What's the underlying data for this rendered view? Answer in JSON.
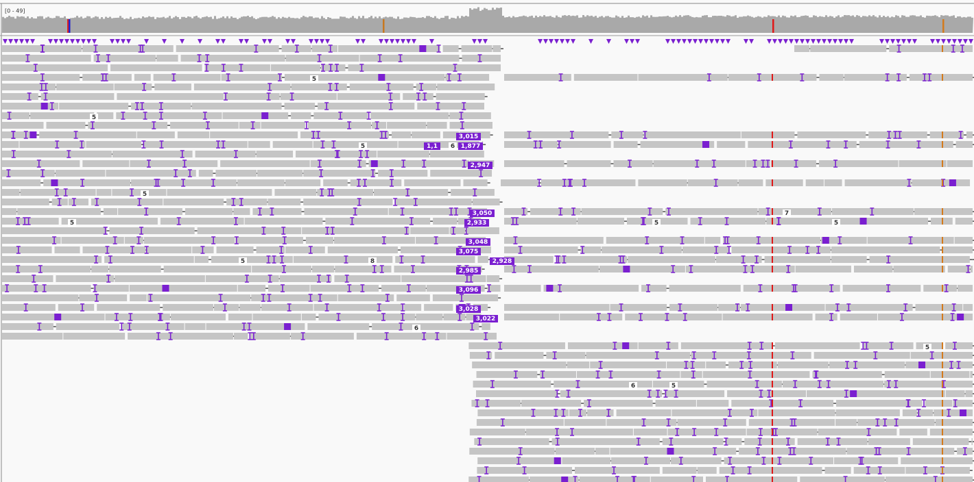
{
  "coverage_track": {
    "range_label": "[0 - 49]"
  },
  "insertion_labels": [
    "5",
    "5",
    "3,015",
    "5",
    "1,1",
    "6",
    "1,877",
    "2,947",
    "5",
    "3,050",
    "7",
    "5",
    "2,933",
    "5",
    "5",
    "3,048",
    "3,075",
    "5",
    "8",
    "2,928",
    "2,985",
    "3,096",
    "3,028",
    "3,022",
    "6",
    "5",
    "6",
    "5"
  ]
}
